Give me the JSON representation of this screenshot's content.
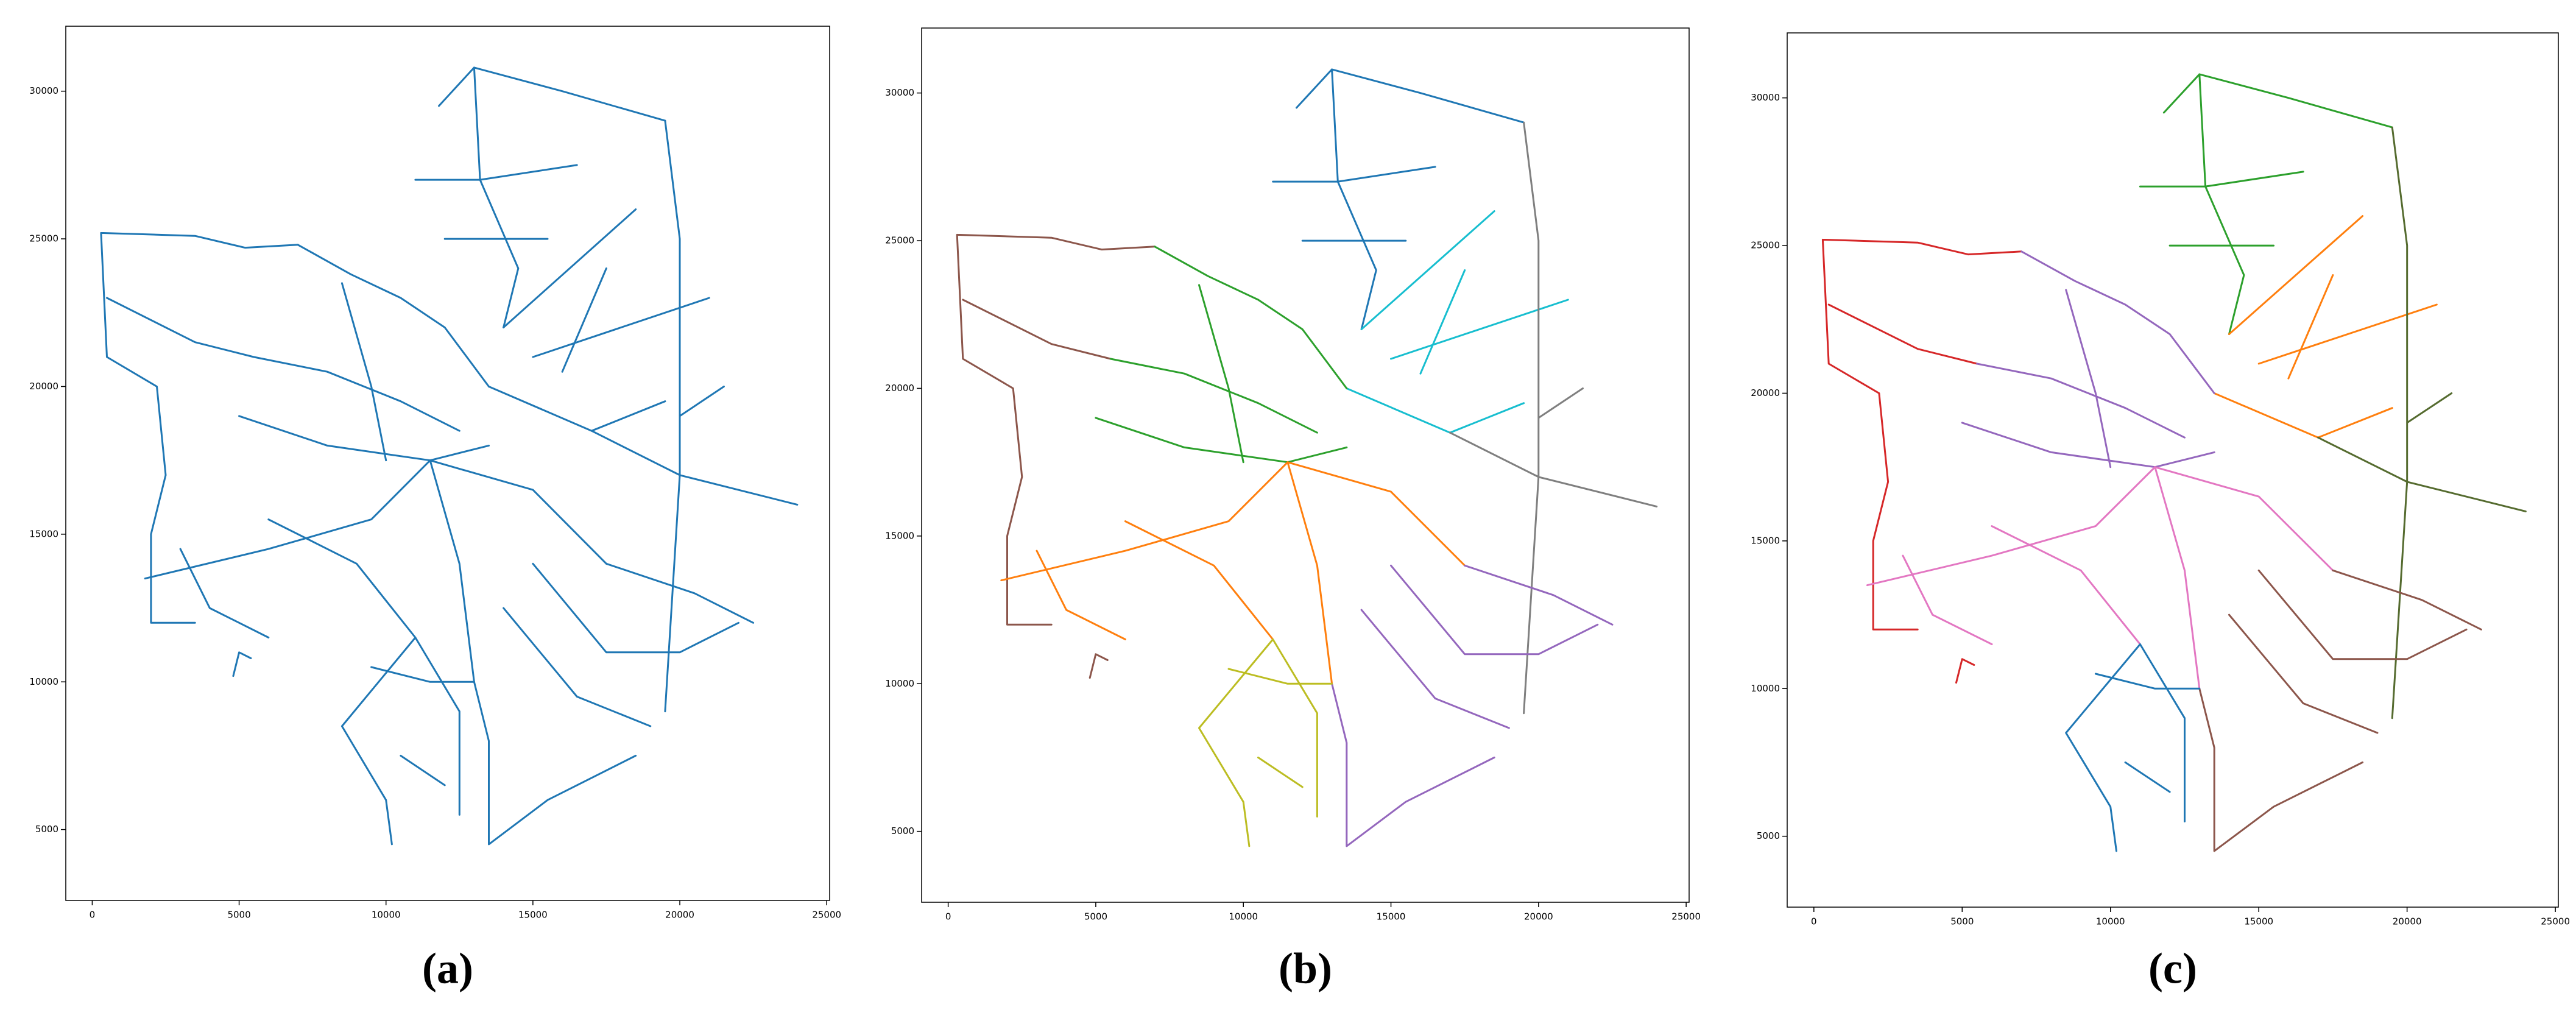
{
  "chart_data": [
    {
      "type": "line",
      "label": "(a)",
      "xlim": [
        -900,
        25100
      ],
      "ylim": [
        2600,
        32200
      ],
      "xticks": [
        0,
        5000,
        10000,
        15000,
        20000,
        25000
      ],
      "yticks": [
        5000,
        10000,
        15000,
        20000,
        25000,
        30000
      ],
      "series": [
        {
          "color": "#1f77b4",
          "x": [
            11800,
            13000,
            16000,
            19500,
            null,
            13000,
            13200,
            14500,
            14000,
            null,
            11000,
            13200,
            16500,
            null,
            12000,
            15500
          ],
          "y": [
            29500,
            30800,
            30000,
            29000,
            null,
            30800,
            27000,
            24000,
            22000,
            null,
            27000,
            27000,
            27500,
            null,
            25000,
            25000
          ]
        },
        {
          "color": "#1f77b4",
          "x": [
            14000,
            18500,
            null,
            15000,
            21000,
            null,
            13500,
            17000,
            19500,
            null,
            16000,
            17500
          ],
          "y": [
            22000,
            26000,
            null,
            21000,
            23000,
            null,
            20000,
            18500,
            19500,
            null,
            20500,
            24000
          ]
        },
        {
          "color": "#1f77b4",
          "x": [
            19500,
            20000,
            20000,
            19500,
            null,
            17000,
            20000,
            24000,
            null,
            20000,
            21500
          ],
          "y": [
            29000,
            25000,
            17000,
            9000,
            null,
            18500,
            17000,
            16000,
            null,
            19000,
            20000
          ]
        },
        {
          "color": "#1f77b4",
          "x": [
            300,
            3500,
            5200,
            7000,
            null,
            300,
            500,
            2200,
            2500,
            2000,
            2000,
            3500,
            null,
            500,
            3500,
            5500,
            null,
            4800,
            5000,
            5400
          ],
          "y": [
            25200,
            25100,
            24700,
            24800,
            null,
            25200,
            21000,
            20000,
            17000,
            15000,
            12000,
            12000,
            null,
            23000,
            21500,
            21000,
            null,
            10200,
            11000,
            10800
          ]
        },
        {
          "color": "#1f77b4",
          "x": [
            7000,
            8800,
            10500,
            12000,
            13500,
            null,
            5500,
            8000,
            10500,
            12500,
            null,
            5000,
            8000,
            11500,
            13500,
            null,
            8500,
            9500,
            10000
          ],
          "y": [
            24800,
            23800,
            23000,
            22000,
            20000,
            null,
            21000,
            20500,
            19500,
            18500,
            null,
            19000,
            18000,
            17500,
            18000,
            null,
            23500,
            20000,
            17500
          ]
        },
        {
          "color": "#1f77b4",
          "x": [
            1800,
            6000,
            9500,
            11500,
            null,
            11500,
            12500,
            13000,
            null,
            6000,
            9000,
            11000,
            null,
            11500,
            15000,
            17500,
            null,
            3000,
            4000,
            6000
          ],
          "y": [
            13500,
            14500,
            15500,
            17500,
            null,
            17500,
            14000,
            10000,
            null,
            15500,
            14000,
            11500,
            null,
            17500,
            16500,
            14000,
            null,
            14500,
            12500,
            11500
          ]
        },
        {
          "color": "#1f77b4",
          "x": [
            13000,
            13500,
            13500,
            15500,
            18500,
            null,
            15000,
            17500,
            20000,
            22000,
            null,
            14000,
            16500,
            19000,
            null,
            17500,
            20500,
            22500
          ],
          "y": [
            10000,
            8000,
            4500,
            6000,
            7500,
            null,
            14000,
            11000,
            11000,
            12000,
            null,
            12500,
            9500,
            8500,
            null,
            14000,
            13000,
            12000
          ]
        },
        {
          "color": "#1f77b4",
          "x": [
            8500,
            10000,
            10200,
            null,
            8500,
            11000,
            12500,
            12500,
            null,
            9500,
            11500,
            13000,
            null,
            10500,
            12000
          ],
          "y": [
            8500,
            6000,
            4500,
            null,
            8500,
            11500,
            9000,
            5500,
            null,
            10500,
            10000,
            10000,
            null,
            7500,
            6500
          ]
        }
      ]
    },
    {
      "type": "line",
      "label": "(b)",
      "xlim": [
        -900,
        25100
      ],
      "ylim": [
        2600,
        32200
      ],
      "xticks": [
        0,
        5000,
        10000,
        15000,
        20000,
        25000
      ],
      "yticks": [
        5000,
        10000,
        15000,
        20000,
        25000,
        30000
      ],
      "series": [
        {
          "color": "#1f77b4",
          "x": [
            11800,
            13000,
            16000,
            19500,
            null,
            13000,
            13200,
            14500,
            14000,
            null,
            11000,
            13200,
            16500,
            null,
            12000,
            15500
          ],
          "y": [
            29500,
            30800,
            30000,
            29000,
            null,
            30800,
            27000,
            24000,
            22000,
            null,
            27000,
            27000,
            27500,
            null,
            25000,
            25000
          ]
        },
        {
          "color": "#17becf",
          "x": [
            14000,
            18500,
            null,
            15000,
            21000,
            null,
            13500,
            17000,
            19500,
            null,
            16000,
            17500
          ],
          "y": [
            22000,
            26000,
            null,
            21000,
            23000,
            null,
            20000,
            18500,
            19500,
            null,
            20500,
            24000
          ]
        },
        {
          "color": "#7f7f7f",
          "x": [
            19500,
            20000,
            20000,
            19500,
            null,
            17000,
            20000,
            24000,
            null,
            20000,
            21500
          ],
          "y": [
            29000,
            25000,
            17000,
            9000,
            null,
            18500,
            17000,
            16000,
            null,
            19000,
            20000
          ]
        },
        {
          "color": "#8c564b",
          "x": [
            300,
            3500,
            5200,
            7000,
            null,
            300,
            500,
            2200,
            2500,
            2000,
            2000,
            3500,
            null,
            500,
            3500,
            5500,
            null,
            4800,
            5000,
            5400
          ],
          "y": [
            25200,
            25100,
            24700,
            24800,
            null,
            25200,
            21000,
            20000,
            17000,
            15000,
            12000,
            12000,
            null,
            23000,
            21500,
            21000,
            null,
            10200,
            11000,
            10800
          ]
        },
        {
          "color": "#2ca02c",
          "x": [
            7000,
            8800,
            10500,
            12000,
            13500,
            null,
            5500,
            8000,
            10500,
            12500,
            null,
            5000,
            8000,
            11500,
            13500,
            null,
            8500,
            9500,
            10000
          ],
          "y": [
            24800,
            23800,
            23000,
            22000,
            20000,
            null,
            21000,
            20500,
            19500,
            18500,
            null,
            19000,
            18000,
            17500,
            18000,
            null,
            23500,
            20000,
            17500
          ]
        },
        {
          "color": "#ff7f0e",
          "x": [
            1800,
            6000,
            9500,
            11500,
            null,
            11500,
            12500,
            13000,
            null,
            6000,
            9000,
            11000,
            null,
            11500,
            15000,
            17500,
            null,
            3000,
            4000,
            6000
          ],
          "y": [
            13500,
            14500,
            15500,
            17500,
            null,
            17500,
            14000,
            10000,
            null,
            15500,
            14000,
            11500,
            null,
            17500,
            16500,
            14000,
            null,
            14500,
            12500,
            11500
          ]
        },
        {
          "color": "#9467bd",
          "x": [
            13000,
            13500,
            13500,
            15500,
            18500,
            null,
            15000,
            17500,
            20000,
            22000,
            null,
            14000,
            16500,
            19000,
            null,
            17500,
            20500,
            22500
          ],
          "y": [
            10000,
            8000,
            4500,
            6000,
            7500,
            null,
            14000,
            11000,
            11000,
            12000,
            null,
            12500,
            9500,
            8500,
            null,
            14000,
            13000,
            12000
          ]
        },
        {
          "color": "#bcbd22",
          "x": [
            8500,
            10000,
            10200,
            null,
            8500,
            11000,
            12500,
            12500,
            null,
            9500,
            11500,
            13000,
            null,
            10500,
            12000
          ],
          "y": [
            8500,
            6000,
            4500,
            null,
            8500,
            11500,
            9000,
            5500,
            null,
            10500,
            10000,
            10000,
            null,
            7500,
            6500
          ]
        }
      ]
    },
    {
      "type": "line",
      "label": "(c)",
      "xlim": [
        -900,
        25100
      ],
      "ylim": [
        2600,
        32200
      ],
      "xticks": [
        0,
        5000,
        10000,
        15000,
        20000,
        25000
      ],
      "yticks": [
        5000,
        10000,
        15000,
        20000,
        25000,
        30000
      ],
      "series": [
        {
          "color": "#2ca02c",
          "x": [
            11800,
            13000,
            16000,
            19500,
            null,
            13000,
            13200,
            14500,
            14000,
            null,
            11000,
            13200,
            16500,
            null,
            12000,
            15500
          ],
          "y": [
            29500,
            30800,
            30000,
            29000,
            null,
            30800,
            27000,
            24000,
            22000,
            null,
            27000,
            27000,
            27500,
            null,
            25000,
            25000
          ]
        },
        {
          "color": "#ff7f0e",
          "x": [
            14000,
            18500,
            null,
            15000,
            21000,
            null,
            13500,
            17000,
            19500,
            null,
            16000,
            17500
          ],
          "y": [
            22000,
            26000,
            null,
            21000,
            23000,
            null,
            20000,
            18500,
            19500,
            null,
            20500,
            24000
          ]
        },
        {
          "color": "#556b2f",
          "x": [
            19500,
            20000,
            20000,
            19500,
            null,
            17000,
            20000,
            24000,
            null,
            20000,
            21500
          ],
          "y": [
            29000,
            25000,
            17000,
            9000,
            null,
            18500,
            17000,
            16000,
            null,
            19000,
            20000
          ]
        },
        {
          "color": "#d62728",
          "x": [
            300,
            3500,
            5200,
            7000,
            null,
            300,
            500,
            2200,
            2500,
            2000,
            2000,
            3500,
            null,
            500,
            3500,
            5500,
            null,
            4800,
            5000,
            5400
          ],
          "y": [
            25200,
            25100,
            24700,
            24800,
            null,
            25200,
            21000,
            20000,
            17000,
            15000,
            12000,
            12000,
            null,
            23000,
            21500,
            21000,
            null,
            10200,
            11000,
            10800
          ]
        },
        {
          "color": "#9467bd",
          "x": [
            7000,
            8800,
            10500,
            12000,
            13500,
            null,
            5500,
            8000,
            10500,
            12500,
            null,
            5000,
            8000,
            11500,
            13500,
            null,
            8500,
            9500,
            10000
          ],
          "y": [
            24800,
            23800,
            23000,
            22000,
            20000,
            null,
            21000,
            20500,
            19500,
            18500,
            null,
            19000,
            18000,
            17500,
            18000,
            null,
            23500,
            20000,
            17500
          ]
        },
        {
          "color": "#e377c2",
          "x": [
            1800,
            6000,
            9500,
            11500,
            null,
            11500,
            12500,
            13000,
            null,
            6000,
            9000,
            11000,
            null,
            11500,
            15000,
            17500,
            null,
            3000,
            4000,
            6000
          ],
          "y": [
            13500,
            14500,
            15500,
            17500,
            null,
            17500,
            14000,
            10000,
            null,
            15500,
            14000,
            11500,
            null,
            17500,
            16500,
            14000,
            null,
            14500,
            12500,
            11500
          ]
        },
        {
          "color": "#8c564b",
          "x": [
            13000,
            13500,
            13500,
            15500,
            18500,
            null,
            15000,
            17500,
            20000,
            22000,
            null,
            14000,
            16500,
            19000,
            null,
            17500,
            20500,
            22500
          ],
          "y": [
            10000,
            8000,
            4500,
            6000,
            7500,
            null,
            14000,
            11000,
            11000,
            12000,
            null,
            12500,
            9500,
            8500,
            null,
            14000,
            13000,
            12000
          ]
        },
        {
          "color": "#1f77b4",
          "x": [
            8500,
            10000,
            10200,
            null,
            8500,
            11000,
            12500,
            12500,
            null,
            9500,
            11500,
            13000,
            null,
            10500,
            12000
          ],
          "y": [
            8500,
            6000,
            4500,
            null,
            8500,
            11500,
            9000,
            5500,
            null,
            10500,
            10000,
            10000,
            null,
            7500,
            6500
          ]
        }
      ]
    }
  ]
}
